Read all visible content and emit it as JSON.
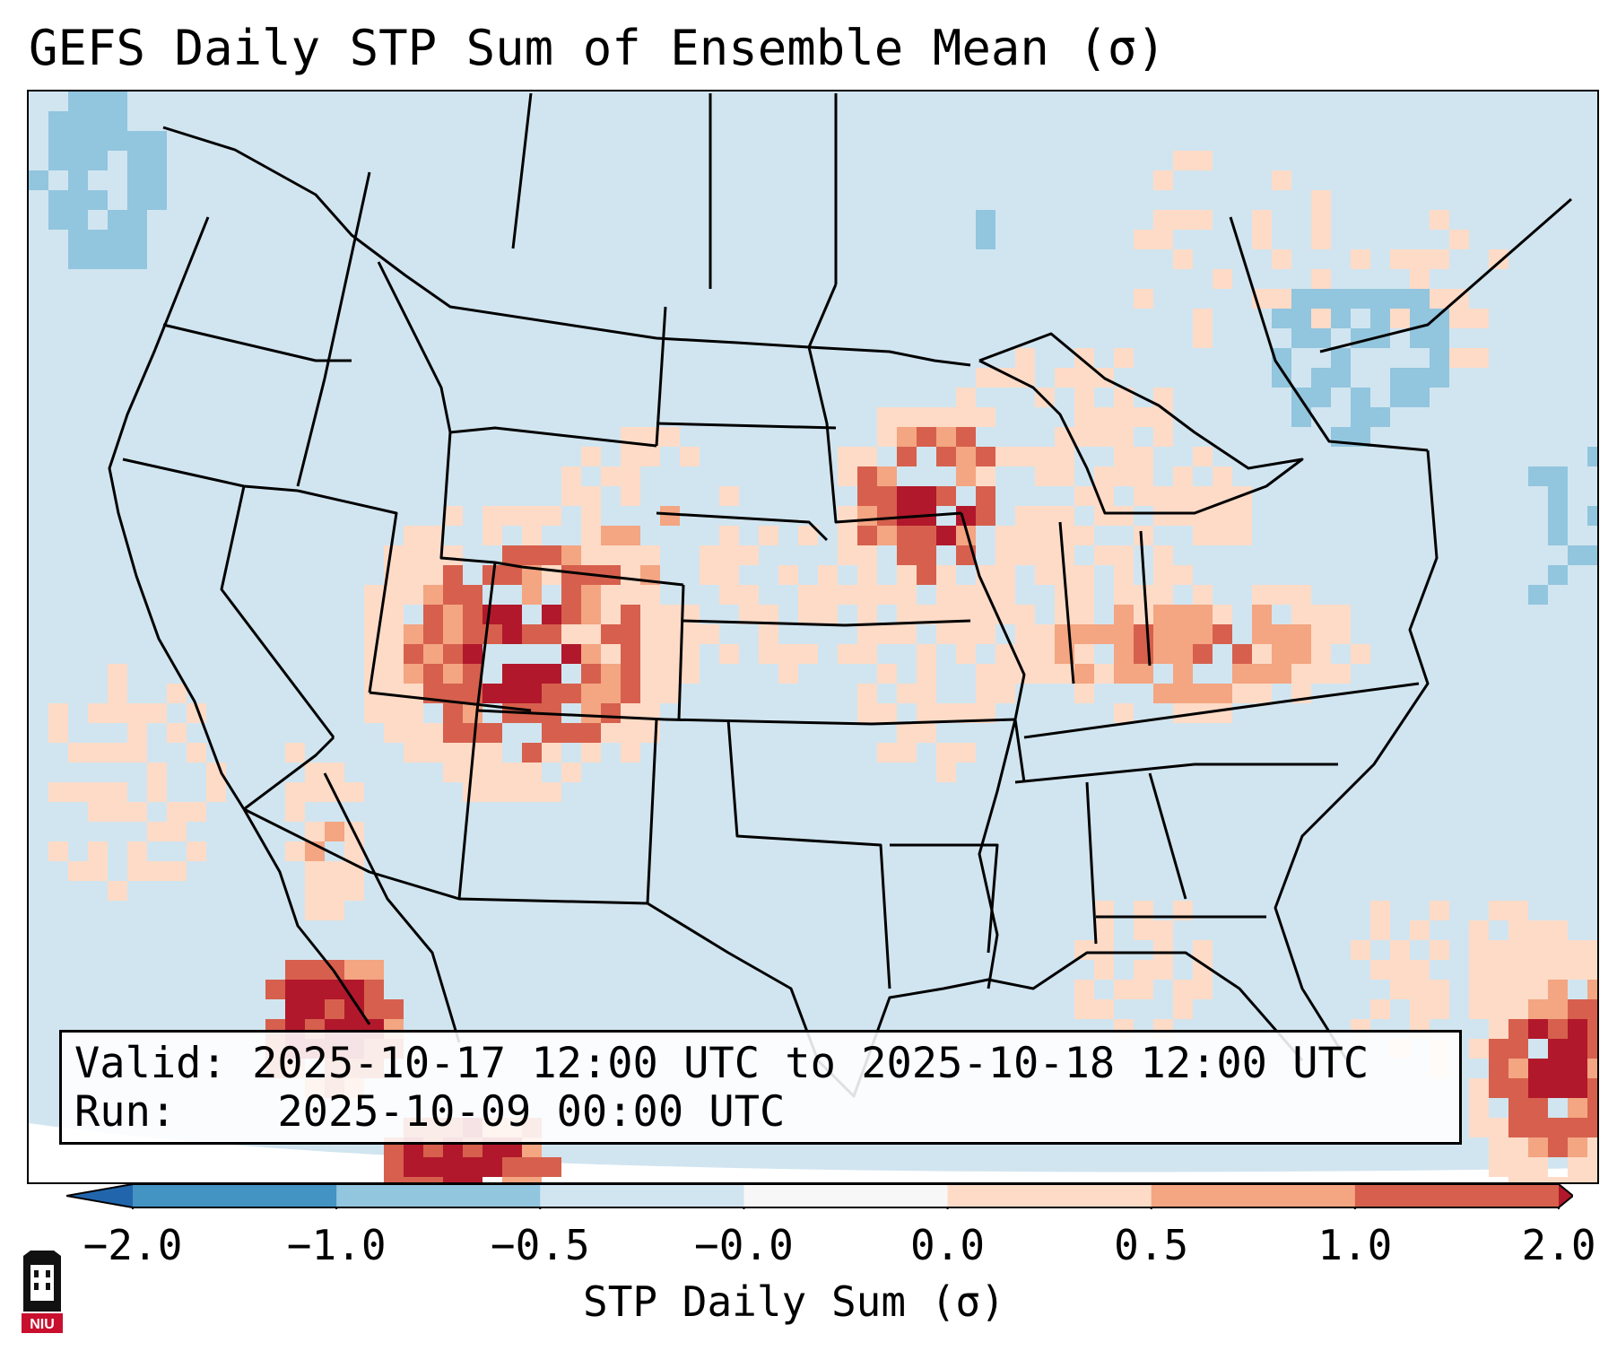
{
  "title": "GEFS Daily STP Sum of Ensemble Mean (σ)",
  "info": {
    "valid_label": "Valid:",
    "valid_value": "2025-10-17 12:00 UTC to 2025-10-18 12:00 UTC",
    "run_label": "Run:",
    "run_value": "2025-10-09 00:00 UTC"
  },
  "colorbar": {
    "label": "STP Daily Sum (σ)",
    "ticks": [
      "−2.0",
      "−1.0",
      "−0.5",
      "−0.0",
      "0.0",
      "0.5",
      "1.0",
      "2.0"
    ],
    "bins": [
      {
        "range": "<-2.0",
        "color": "#2166ac"
      },
      {
        "range": "-2.0 to -1.0",
        "color": "#4393c3"
      },
      {
        "range": "-1.0 to -0.5",
        "color": "#92c5de"
      },
      {
        "range": "-0.5 to -0.0",
        "color": "#d1e5f0"
      },
      {
        "range": "-0.0 to 0.0",
        "color": "#f7f7f7"
      },
      {
        "range": "0.0 to 0.5",
        "color": "#fddbc7"
      },
      {
        "range": "0.5 to 1.0",
        "color": "#f4a582"
      },
      {
        "range": "1.0 to 2.0",
        "color": "#d6604d"
      },
      {
        "range": ">2.0",
        "color": "#b2182b"
      }
    ]
  },
  "map": {
    "background_color": "#d1e5f0",
    "region": "Contiguous United States, northern Mexico, Caribbean",
    "feature_regions": [
      {
        "area": "Four Corners / Colorado–New Mexico",
        "category": "0.5 to 2.0+",
        "color": "#d6604d"
      },
      {
        "area": "Iowa / northern Illinois / southern Wisconsin",
        "category": "1.0 to 2.0+",
        "color": "#b2182b"
      },
      {
        "area": "Kentucky / Tennessee",
        "category": "0.5 to 1.0+",
        "color": "#d6604d"
      },
      {
        "area": "Sea of Cortez / Baja California",
        "category": ">2.0",
        "color": "#b2182b"
      },
      {
        "area": "Hispaniola / Caribbean",
        "category": "1.0 to 2.0+",
        "color": "#b2182b"
      },
      {
        "area": "Nebraska / Kansas",
        "category": "0.0 to 0.5",
        "color": "#fddbc7"
      },
      {
        "area": "Pacific Northwest coast",
        "category": "-1.0 to -0.5",
        "color": "#92c5de"
      },
      {
        "area": "Great Lakes / New England",
        "category": "-1.0 to -0.5",
        "color": "#92c5de"
      }
    ]
  },
  "logo": {
    "text": "NIU",
    "color": "#c8102e"
  }
}
